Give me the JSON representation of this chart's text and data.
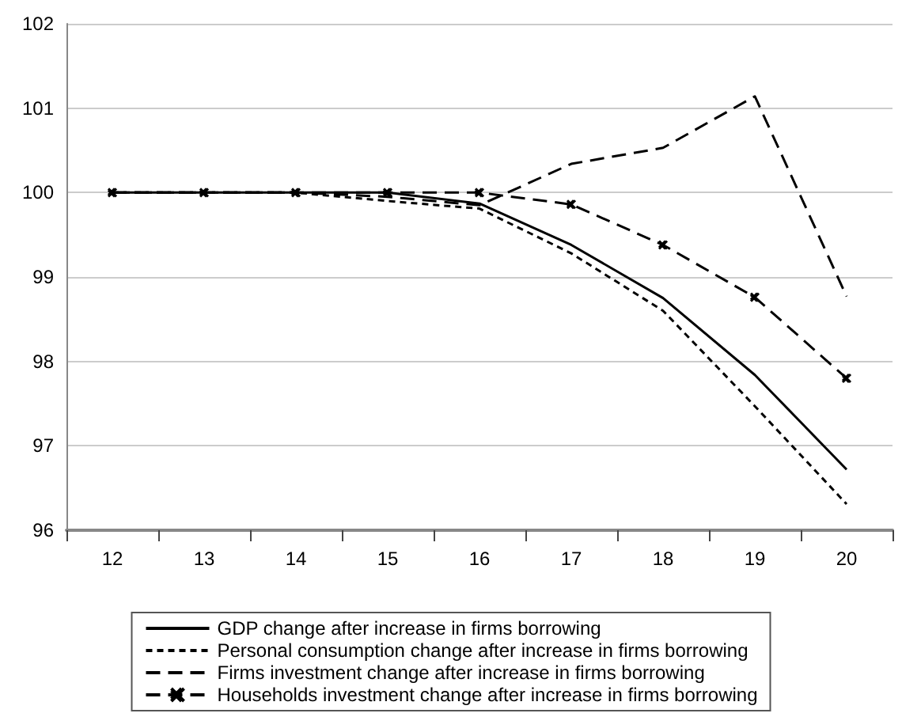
{
  "chart_data": {
    "type": "line",
    "categories": [
      "12",
      "13",
      "14",
      "15",
      "16",
      "17",
      "18",
      "19",
      "20"
    ],
    "ylim": [
      96,
      102
    ],
    "yticks": [
      96,
      97,
      98,
      99,
      100,
      101,
      102
    ],
    "grid": "y",
    "legend": "bottom",
    "series": [
      {
        "name": "GDP change after increase in firms borrowing",
        "color": "#000000",
        "line_style": "solid",
        "marker": "none",
        "values": [
          100,
          100,
          100,
          100,
          99.87,
          99.38,
          98.75,
          97.84,
          96.72
        ]
      },
      {
        "name": "Personal consumption change after increase in firms borrowing",
        "color": "#000000",
        "line_style": "dotted",
        "marker": "none",
        "values": [
          100,
          100,
          100,
          99.9,
          99.81,
          99.28,
          98.6,
          97.47,
          96.31
        ]
      },
      {
        "name": "Firms investment change after increase in firms borrowing",
        "color": "#000000",
        "line_style": "dashed",
        "marker": "none",
        "values": [
          100,
          100,
          100,
          99.95,
          99.85,
          100.34,
          100.53,
          101.14,
          98.77
        ]
      },
      {
        "name": "Households investment change after increase in firms borrowing",
        "color": "#000000",
        "line_style": "dashed",
        "marker": "cross",
        "values": [
          100,
          100,
          100,
          100,
          100,
          99.86,
          99.38,
          98.76,
          97.8
        ]
      }
    ]
  }
}
